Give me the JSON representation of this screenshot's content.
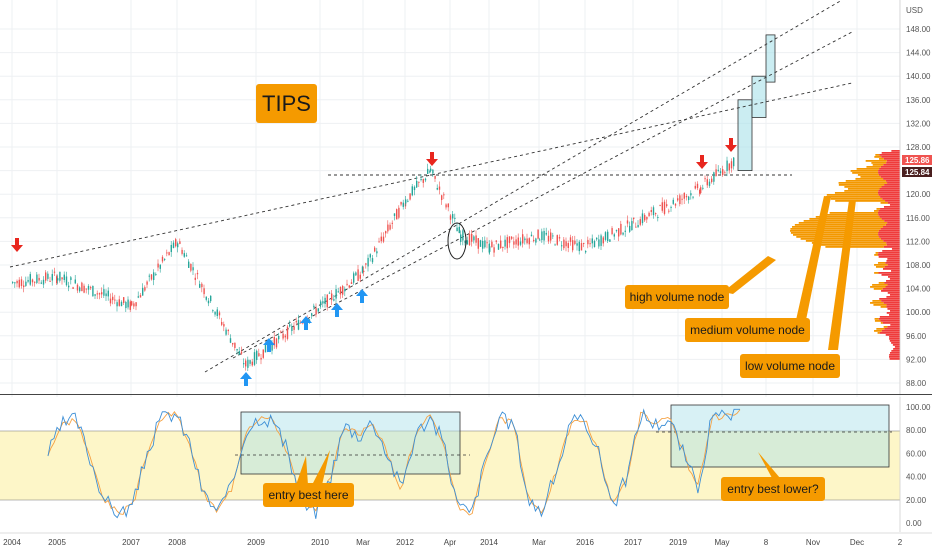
{
  "currency": "USD",
  "title": "TIPS",
  "price_tags": [
    "125.86",
    "125.84"
  ],
  "annotations": {
    "high": "high volume node",
    "medium": "medium volume node",
    "low": "low volume node",
    "entry_here": "entry best here",
    "entry_lower": "entry best lower?"
  },
  "colors": {
    "up": "#26a69a",
    "down": "#ef5350",
    "callout": "#f59a00",
    "arrow_up": "#2196f3",
    "arrow_down": "#e8261e",
    "zone_fill": "#a8e1e9",
    "stoch_band": "#fdf6c8",
    "stoch_k": "#3d8fd6",
    "stoch_d": "#f5a142",
    "vp_high": "#f39800",
    "vp_low": "#ef3b3b"
  },
  "chart_data": [
    {
      "type": "candlestick",
      "y_axis": {
        "min": 86,
        "max": 152,
        "ticks": [
          "88.00",
          "92.00",
          "96.00",
          "100.00",
          "104.00",
          "108.00",
          "112.00",
          "116.00",
          "120.00",
          "124.00",
          "128.00",
          "132.00",
          "136.00",
          "140.00",
          "144.00",
          "148.00"
        ]
      },
      "x_axis": {
        "ticks": [
          "2004",
          "2005",
          "2007",
          "2008",
          "2009",
          "2010",
          "Mar",
          "2012",
          "Apr",
          "2014",
          "Mar",
          "2016",
          "2017",
          "2019",
          "May",
          "8",
          "Nov",
          "Dec",
          "2"
        ]
      },
      "price_path": [
        {
          "x": "2004",
          "price": 105
        },
        {
          "x": "2005",
          "price": 106
        },
        {
          "x": "2007",
          "price": 101
        },
        {
          "x": "2008",
          "price": 112
        },
        {
          "x": "2009",
          "price": 91
        },
        {
          "x": "2010",
          "price": 101
        },
        {
          "x": "Mar",
          "price": 107
        },
        {
          "x": "2012",
          "price": 119
        },
        {
          "x": "2012",
          "price": 124
        },
        {
          "x": "Apr",
          "price": 113
        },
        {
          "x": "2014",
          "price": 111
        },
        {
          "x": "Mar",
          "price": 113
        },
        {
          "x": "2016",
          "price": 111
        },
        {
          "x": "2017",
          "price": 115
        },
        {
          "x": "2019",
          "price": 121
        },
        {
          "x": "May",
          "price": 126
        }
      ],
      "projection_boxes": [
        {
          "low": 124,
          "high": 136
        },
        {
          "low": 133,
          "high": 140
        },
        {
          "low": 139,
          "high": 147
        }
      ],
      "horizontal_level": 124.4,
      "last_price": 125.86,
      "volume_profile_nodes": [
        "high volume node",
        "medium volume node",
        "low volume node"
      ]
    },
    {
      "type": "line",
      "indicator": "stochastic",
      "y_axis": {
        "min": 0,
        "max": 100,
        "ticks": [
          "0.00",
          "20.00",
          "40.00",
          "60.00",
          "80.00",
          "100.00"
        ]
      },
      "bands": [
        20,
        80
      ],
      "series": [
        {
          "values": [
            60,
            85,
            90,
            55,
            20,
            8,
            15,
            60,
            90,
            95,
            70,
            25,
            10,
            30,
            80,
            92,
            88,
            60,
            15,
            10,
            40,
            85,
            75,
            88,
            60,
            30,
            75,
            92,
            70,
            15,
            8,
            55,
            90,
            85,
            20,
            10,
            45,
            85,
            90,
            60,
            15,
            40,
            95,
            85,
            90,
            60,
            30,
            90,
            92,
            95
          ]
        }
      ]
    }
  ]
}
